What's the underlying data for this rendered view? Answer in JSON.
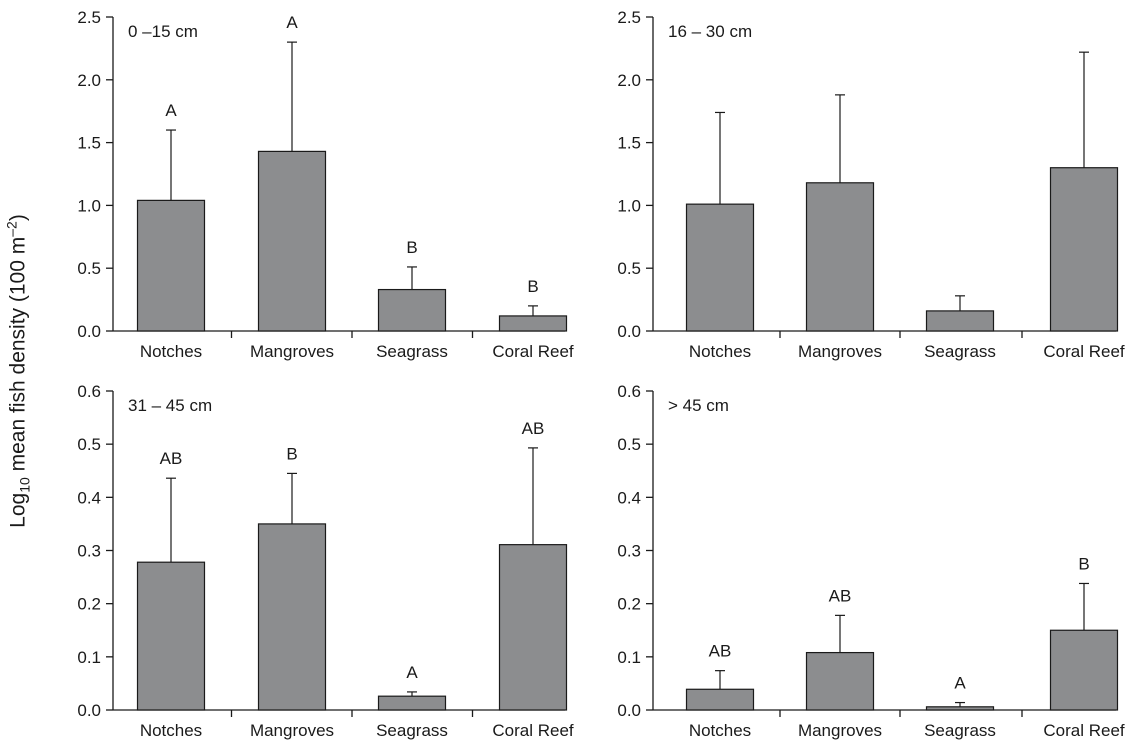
{
  "figure": {
    "ylabel_prefix": "Log",
    "ylabel_sub": "10",
    "ylabel_mid": " mean fish density (100 m",
    "ylabel_sup": "–2",
    "ylabel_end": ")"
  },
  "colors": {
    "bar": "#8c8d8f",
    "ink": "#1a1a1a",
    "background": "#ffffff"
  },
  "chart_data": [
    {
      "type": "bar",
      "panel": "0 –15 cm",
      "categories": [
        "Notches",
        "Mangroves",
        "Seagrass",
        "Coral Reef"
      ],
      "values": [
        1.04,
        1.43,
        0.33,
        0.12
      ],
      "error_upper": [
        1.6,
        2.3,
        0.51,
        0.2
      ],
      "significance": [
        "A",
        "A",
        "B",
        "B"
      ],
      "ylim": [
        0,
        2.5
      ],
      "yticks": [
        "0.0",
        "0.5",
        "1.0",
        "1.5",
        "2.0",
        "2.5"
      ]
    },
    {
      "type": "bar",
      "panel": "16 – 30 cm",
      "categories": [
        "Notches",
        "Mangroves",
        "Seagrass",
        "Coral Reef"
      ],
      "values": [
        1.01,
        1.18,
        0.16,
        1.3
      ],
      "error_upper": [
        1.74,
        1.88,
        0.28,
        2.22
      ],
      "significance": [
        "",
        "",
        "",
        ""
      ],
      "ylim": [
        0,
        2.5
      ],
      "yticks": [
        "0.0",
        "0.5",
        "1.0",
        "1.5",
        "2.0",
        "2.5"
      ]
    },
    {
      "type": "bar",
      "panel": "31 – 45 cm",
      "categories": [
        "Notches",
        "Mangroves",
        "Seagrass",
        "Coral Reef"
      ],
      "values": [
        0.278,
        0.35,
        0.026,
        0.311
      ],
      "error_upper": [
        0.436,
        0.445,
        0.034,
        0.493
      ],
      "significance": [
        "AB",
        "B",
        "A",
        "AB"
      ],
      "ylim": [
        0,
        0.6
      ],
      "yticks": [
        "0.0",
        "0.1",
        "0.2",
        "0.3",
        "0.4",
        "0.5",
        "0.6"
      ]
    },
    {
      "type": "bar",
      "panel": "> 45 cm",
      "categories": [
        "Notches",
        "Mangroves",
        "Seagrass",
        "Coral Reef"
      ],
      "values": [
        0.039,
        0.108,
        0.006,
        0.15
      ],
      "error_upper": [
        0.074,
        0.178,
        0.014,
        0.238
      ],
      "significance": [
        "AB",
        "AB",
        "A",
        "B"
      ],
      "ylim": [
        0,
        0.6
      ],
      "yticks": [
        "0.0",
        "0.1",
        "0.2",
        "0.3",
        "0.4",
        "0.5",
        "0.6"
      ]
    }
  ]
}
